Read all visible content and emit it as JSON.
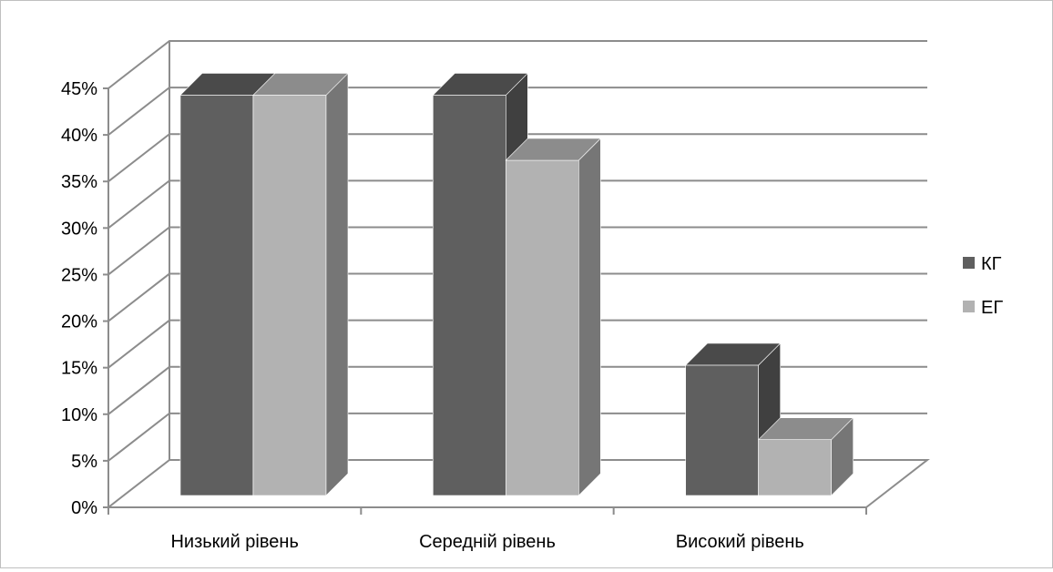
{
  "chart_data": {
    "type": "bar",
    "categories": [
      "Низький рівень",
      "Середній рівень",
      "Високий рівень"
    ],
    "series": [
      {
        "name": "КГ",
        "values": [
          43,
          43,
          14
        ]
      },
      {
        "name": "ЕГ",
        "values": [
          43,
          36,
          6
        ]
      }
    ],
    "ylim": [
      0,
      45
    ],
    "ytick_step": 5,
    "ytick_format": "percent",
    "grid": true,
    "three_d": true,
    "legend_position": "right",
    "colors": {
      "КГ": {
        "front": "#5f5f5f",
        "side": "#404040",
        "top": "#4a4a4a"
      },
      "ЕГ": {
        "front": "#b2b2b2",
        "side": "#767676",
        "top": "#8c8c8c"
      },
      "gridline": "#8c8c8c",
      "frame": "#bfbfbf"
    }
  }
}
